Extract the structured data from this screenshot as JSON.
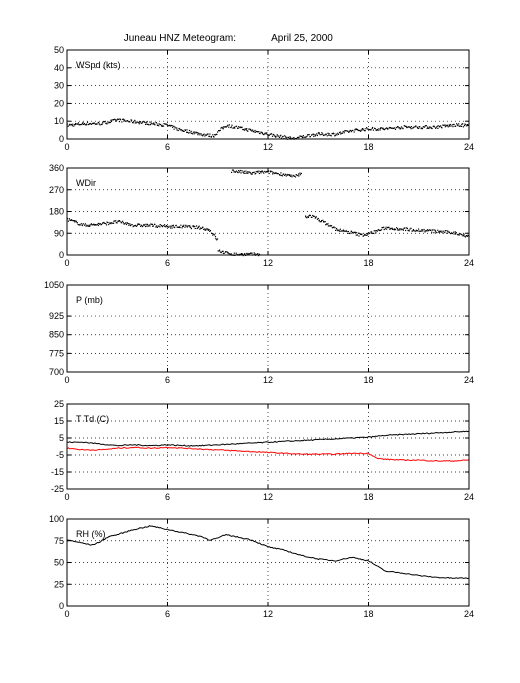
{
  "title": "Juneau HNZ Meteogram:",
  "date": "April 25, 2000",
  "colors": {
    "black": "#000000",
    "red": "#ff0000"
  },
  "chart_data": [
    {
      "type": "scatter",
      "label": "WSpd (kts)",
      "xlim": [
        0,
        24
      ],
      "xticks": [
        0,
        6,
        12,
        18,
        24
      ],
      "ylim": [
        0,
        50
      ],
      "yticks": [
        0,
        10,
        20,
        30,
        40,
        50
      ],
      "grid": true,
      "series": [
        {
          "color": "#000000",
          "x": [
            0,
            1,
            2,
            3,
            4,
            5,
            6,
            6.5,
            7,
            8,
            8.7,
            9.2,
            9.5,
            10.5,
            11.5,
            12.5,
            13.5,
            14,
            14.5,
            15,
            16,
            17,
            18,
            19,
            20,
            21,
            22,
            23,
            24
          ],
          "y": [
            8,
            9,
            9,
            11,
            10,
            9,
            8,
            6,
            5,
            3,
            2,
            6,
            8,
            6,
            4,
            2,
            0.5,
            1.5,
            2.5,
            3,
            3,
            5,
            6,
            6,
            7,
            7,
            7,
            8,
            8
          ]
        }
      ]
    },
    {
      "type": "scatter",
      "label": "WDir",
      "xlim": [
        0,
        24
      ],
      "xticks": [
        0,
        6,
        12,
        18,
        24
      ],
      "ylim": [
        0,
        360
      ],
      "yticks": [
        0,
        90,
        180,
        270,
        360
      ],
      "grid": true,
      "series": [
        {
          "color": "#000000",
          "x": [
            0,
            1,
            2,
            3,
            4,
            5,
            6,
            7,
            8,
            8.5,
            9
          ],
          "y": [
            150,
            125,
            130,
            140,
            125,
            125,
            120,
            120,
            115,
            105,
            60
          ]
        },
        {
          "color": "#000000",
          "x": [
            9,
            9.5,
            10,
            10.5,
            11,
            11.5
          ],
          "y": [
            20,
            10,
            5,
            5,
            5,
            5
          ]
        },
        {
          "color": "#000000",
          "x": [
            9.8,
            10.5,
            11,
            11.5,
            12,
            12.5,
            13,
            13.5,
            14
          ],
          "y": [
            350,
            345,
            340,
            345,
            345,
            340,
            335,
            325,
            340
          ]
        },
        {
          "color": "#000000",
          "x": [
            14.2,
            14.5,
            15,
            15.5,
            16,
            16.5,
            17,
            17.5,
            18,
            19,
            20,
            21,
            22,
            23,
            24
          ],
          "y": [
            160,
            165,
            150,
            130,
            110,
            100,
            95,
            85,
            90,
            115,
            110,
            105,
            100,
            95,
            80
          ]
        }
      ]
    },
    {
      "type": "line",
      "label": "P (mb)",
      "xlim": [
        0,
        24
      ],
      "xticks": [
        0,
        6,
        12,
        18,
        24
      ],
      "ylim": [
        700,
        1050
      ],
      "yticks": [
        700,
        775,
        850,
        925,
        1050
      ],
      "grid": true,
      "series": []
    },
    {
      "type": "line",
      "label": "T Td (C)",
      "xlim": [
        0,
        24
      ],
      "xticks": [
        0,
        6,
        12,
        18,
        24
      ],
      "ylim": [
        -25,
        25
      ],
      "yticks": [
        -25,
        -15,
        -5,
        5,
        15,
        25
      ],
      "grid": true,
      "series": [
        {
          "color": "#000000",
          "x": [
            0,
            1,
            2,
            3,
            4,
            5,
            6,
            7,
            8,
            9,
            10,
            11,
            12,
            13,
            14,
            15,
            16,
            17,
            18,
            19,
            20,
            21,
            22,
            23,
            24
          ],
          "y": [
            2.5,
            2.5,
            1.5,
            0.5,
            1,
            0.5,
            1,
            0.5,
            0.5,
            1,
            1.5,
            2,
            2.5,
            3,
            3.5,
            4,
            4.5,
            5,
            5.5,
            6.5,
            7,
            7.5,
            8,
            8.5,
            9
          ]
        },
        {
          "color": "#ff0000",
          "x": [
            0,
            1,
            2,
            3,
            4,
            5,
            6,
            7,
            8,
            9,
            10,
            11,
            12,
            13,
            14,
            15,
            16,
            17,
            18,
            18.5,
            19,
            20,
            21,
            22,
            23,
            24
          ],
          "y": [
            -1,
            -2,
            -2,
            -1,
            -0.5,
            -1,
            -0.5,
            -1,
            -1.5,
            -2,
            -2.5,
            -3,
            -3.5,
            -4,
            -4.5,
            -4.5,
            -4.5,
            -4,
            -4,
            -7,
            -7.5,
            -8,
            -8,
            -8.5,
            -8.5,
            -8
          ]
        }
      ]
    },
    {
      "type": "line",
      "label": "RH (%)",
      "xlim": [
        0,
        24
      ],
      "xticks": [
        0,
        6,
        12,
        18,
        24
      ],
      "ylim": [
        0,
        100
      ],
      "yticks": [
        0,
        25,
        50,
        75,
        100
      ],
      "grid": true,
      "series": [
        {
          "color": "#000000",
          "x": [
            0,
            1,
            1.5,
            2,
            2.5,
            3,
            4,
            5,
            6,
            7,
            8,
            8.5,
            9,
            9.5,
            10,
            11,
            11.5,
            12,
            13,
            14,
            15,
            16,
            17,
            18,
            19,
            20,
            21,
            22,
            23,
            24
          ],
          "y": [
            76,
            72,
            70,
            74,
            80,
            82,
            88,
            92,
            88,
            84,
            80,
            76,
            78,
            82,
            80,
            76,
            72,
            68,
            64,
            58,
            54,
            52,
            56,
            52,
            40,
            38,
            35,
            33,
            32,
            32
          ]
        }
      ]
    }
  ]
}
